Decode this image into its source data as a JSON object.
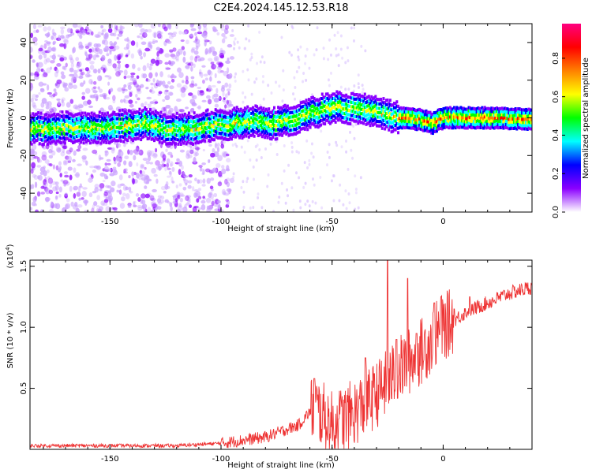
{
  "figure_title": "C2E4.2024.145.12.53.R18",
  "colorbar": {
    "label": "Normalized spectral amplitude",
    "ticks": [
      "0.0",
      "0.2",
      "0.4",
      "0.6",
      "0.8"
    ],
    "tick_values": [
      0.0,
      0.2,
      0.4,
      0.6,
      0.8
    ],
    "range": [
      0,
      0.98
    ],
    "colors": [
      "#ffffff",
      "#8b00ff",
      "#0000ff",
      "#00ffff",
      "#00ff00",
      "#ffff00",
      "#ff8000",
      "#ff0000",
      "#ff0080"
    ]
  },
  "chart_data": [
    {
      "type": "heatmap",
      "title": "",
      "xlabel": "Height of straight line (km)",
      "ylabel": "Frequency (Hz)",
      "xlim": [
        -186,
        40
      ],
      "ylim": [
        -50,
        50
      ],
      "x_ticks": [
        -150,
        -100,
        -50,
        0
      ],
      "x_tick_labels": [
        "-150",
        "-100",
        "-50",
        "0"
      ],
      "y_ticks": [
        -40,
        -20,
        0,
        20,
        40
      ],
      "y_tick_labels": [
        "-40",
        "-20",
        "0",
        "20",
        "40"
      ],
      "ridge": [
        {
          "x": -186,
          "y": -6
        },
        {
          "x": -170,
          "y": -5
        },
        {
          "x": -150,
          "y": -5
        },
        {
          "x": -135,
          "y": -3
        },
        {
          "x": -125,
          "y": -6
        },
        {
          "x": -115,
          "y": -6
        },
        {
          "x": -105,
          "y": -4
        },
        {
          "x": -95,
          "y": -3
        },
        {
          "x": -85,
          "y": -2
        },
        {
          "x": -75,
          "y": -3
        },
        {
          "x": -65,
          "y": 0
        },
        {
          "x": -55,
          "y": 4
        },
        {
          "x": -48,
          "y": 6
        },
        {
          "x": -40,
          "y": 5
        },
        {
          "x": -30,
          "y": 3
        },
        {
          "x": -20,
          "y": 0
        },
        {
          "x": -10,
          "y": -1
        },
        {
          "x": -5,
          "y": -3
        },
        {
          "x": 0,
          "y": 0
        },
        {
          "x": 10,
          "y": 0
        },
        {
          "x": 20,
          "y": 0
        },
        {
          "x": 40,
          "y": -1
        }
      ]
    },
    {
      "type": "line",
      "title": "",
      "xlabel": "Height of straight line (km)",
      "ylabel": "SNR (10 * v/v)",
      "y_exponent_label": "(x10",
      "y_exponent": "4",
      "xlim": [
        -186,
        40
      ],
      "ylim": [
        0,
        1.55
      ],
      "x_ticks": [
        -150,
        -100,
        -50,
        0
      ],
      "x_tick_labels": [
        "-150",
        "-100",
        "-50",
        "0"
      ],
      "y_ticks": [
        0.5,
        1.0,
        1.5
      ],
      "y_tick_labels": [
        "0.5",
        "1.0",
        "1.5"
      ],
      "series": [
        {
          "color": "#ee3333",
          "trend": [
            {
              "x": -186,
              "y": 0.03
            },
            {
              "x": -120,
              "y": 0.03
            },
            {
              "x": -100,
              "y": 0.05
            },
            {
              "x": -80,
              "y": 0.1
            },
            {
              "x": -65,
              "y": 0.2
            },
            {
              "x": -58,
              "y": 0.35
            },
            {
              "x": -50,
              "y": 0.2
            },
            {
              "x": -40,
              "y": 0.3
            },
            {
              "x": -30,
              "y": 0.45
            },
            {
              "x": -20,
              "y": 0.65
            },
            {
              "x": -10,
              "y": 0.8
            },
            {
              "x": 0,
              "y": 1.0
            },
            {
              "x": 10,
              "y": 1.12
            },
            {
              "x": 20,
              "y": 1.2
            },
            {
              "x": 30,
              "y": 1.28
            },
            {
              "x": 40,
              "y": 1.33
            }
          ],
          "spikes": [
            {
              "x": -58,
              "y": 0.58
            },
            {
              "x": -47,
              "y": 0.25
            },
            {
              "x": -35,
              "y": 0.75
            },
            {
              "x": -31,
              "y": 0.62
            },
            {
              "x": -25,
              "y": 1.55
            },
            {
              "x": -21,
              "y": 0.9
            },
            {
              "x": -16,
              "y": 1.4
            },
            {
              "x": -12,
              "y": 0.95
            },
            {
              "x": -4,
              "y": 1.2
            },
            {
              "x": -1,
              "y": 1.25
            },
            {
              "x": 5,
              "y": 1.15
            },
            {
              "x": 12,
              "y": 1.25
            }
          ]
        }
      ]
    }
  ]
}
